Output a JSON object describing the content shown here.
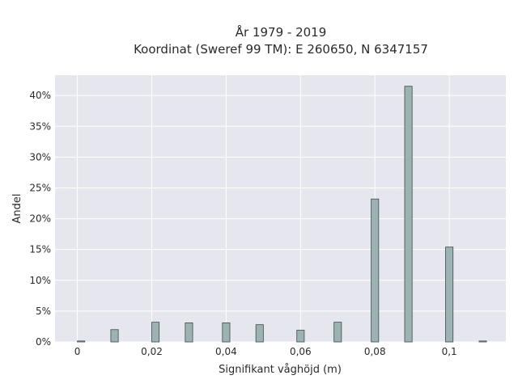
{
  "chart_data": {
    "type": "bar",
    "title_line1": "År 1979 - 2019",
    "title_line2": "Koordinat (Sweref 99 TM): E 260650, N 6347157",
    "xlabel": "Signifikant våghöjd (m)",
    "ylabel": "Andel",
    "xlim": [
      -0.006,
      0.1152
    ],
    "ylim": [
      0,
      43.3
    ],
    "grid": true,
    "x_ticks": [
      {
        "value": 0,
        "label": "0"
      },
      {
        "value": 0.02,
        "label": "0,02"
      },
      {
        "value": 0.04,
        "label": "0,04"
      },
      {
        "value": 0.06,
        "label": "0,06"
      },
      {
        "value": 0.08,
        "label": "0,08"
      },
      {
        "value": 0.1,
        "label": "0,1"
      }
    ],
    "y_ticks": [
      {
        "value": 0,
        "label": "0%"
      },
      {
        "value": 5,
        "label": "5%"
      },
      {
        "value": 10,
        "label": "10%"
      },
      {
        "value": 15,
        "label": "15%"
      },
      {
        "value": 20,
        "label": "20%"
      },
      {
        "value": 25,
        "label": "25%"
      },
      {
        "value": 30,
        "label": "30%"
      },
      {
        "value": 35,
        "label": "35%"
      },
      {
        "value": 40,
        "label": "40%"
      }
    ],
    "bar_color": "#9db3b3",
    "bar_edge_color": "#3b4a4a",
    "bar_width": 0.002,
    "x": [
      0.001,
      0.01,
      0.021,
      0.03,
      0.04,
      0.049,
      0.06,
      0.07,
      0.08,
      0.089,
      0.1,
      0.109
    ],
    "values": [
      0.15,
      2.0,
      3.2,
      3.1,
      3.1,
      2.8,
      1.9,
      3.2,
      23.2,
      41.5,
      15.4,
      0.15
    ]
  }
}
